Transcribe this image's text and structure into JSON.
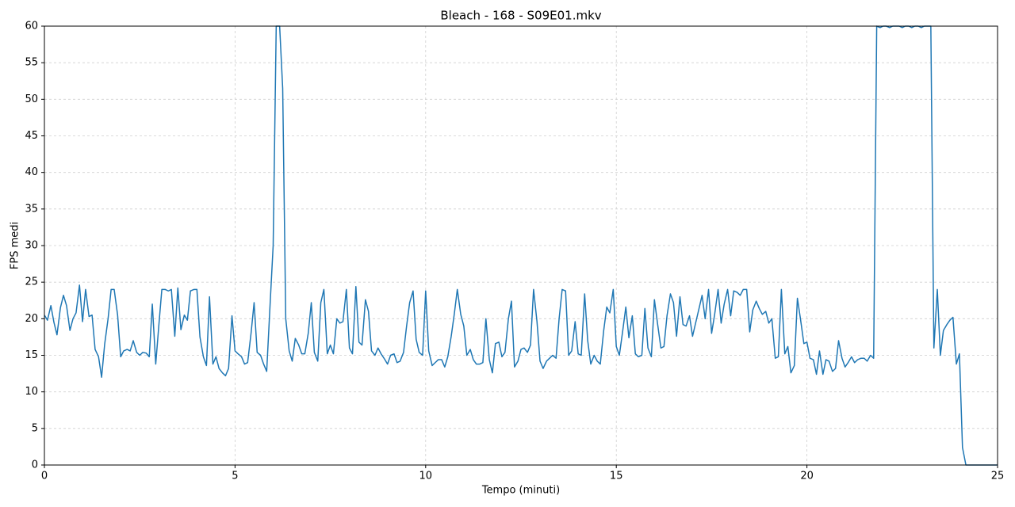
{
  "chart_data": {
    "type": "line",
    "title": "Bleach - 168 - S09E01.mkv",
    "x_label": "Tempo (minuti)",
    "y_label": "FPS medi",
    "xlim": [
      0,
      25
    ],
    "ylim": [
      0,
      60
    ],
    "xticks": [
      0,
      5,
      10,
      15,
      20,
      25
    ],
    "yticks": [
      0,
      5,
      10,
      15,
      20,
      25,
      30,
      35,
      40,
      45,
      50,
      55,
      60
    ],
    "grid": true,
    "x": [
      0,
      0.08,
      0.17,
      0.25,
      0.33,
      0.42,
      0.5,
      0.58,
      0.67,
      0.75,
      0.83,
      0.92,
      1,
      1.08,
      1.17,
      1.25,
      1.33,
      1.42,
      1.5,
      1.58,
      1.67,
      1.75,
      1.83,
      1.92,
      2,
      2.08,
      2.17,
      2.25,
      2.33,
      2.42,
      2.5,
      2.58,
      2.67,
      2.75,
      2.83,
      2.92,
      3,
      3.08,
      3.17,
      3.25,
      3.33,
      3.42,
      3.5,
      3.58,
      3.67,
      3.75,
      3.83,
      3.92,
      4,
      4.08,
      4.17,
      4.25,
      4.33,
      4.42,
      4.5,
      4.58,
      4.67,
      4.75,
      4.83,
      4.92,
      5,
      5.08,
      5.17,
      5.25,
      5.33,
      5.42,
      5.5,
      5.58,
      5.67,
      5.75,
      5.83,
      5.92,
      6,
      6.08,
      6.17,
      6.25,
      6.33,
      6.42,
      6.5,
      6.58,
      6.67,
      6.75,
      6.83,
      6.92,
      7,
      7.08,
      7.17,
      7.25,
      7.33,
      7.42,
      7.5,
      7.58,
      7.67,
      7.75,
      7.83,
      7.92,
      8,
      8.08,
      8.17,
      8.25,
      8.33,
      8.42,
      8.5,
      8.58,
      8.67,
      8.75,
      8.83,
      8.92,
      9,
      9.08,
      9.17,
      9.25,
      9.33,
      9.42,
      9.5,
      9.58,
      9.67,
      9.75,
      9.83,
      9.92,
      10,
      10.08,
      10.17,
      10.25,
      10.33,
      10.42,
      10.5,
      10.58,
      10.67,
      10.75,
      10.83,
      10.92,
      11,
      11.08,
      11.17,
      11.25,
      11.33,
      11.42,
      11.5,
      11.58,
      11.67,
      11.75,
      11.83,
      11.92,
      12,
      12.08,
      12.17,
      12.25,
      12.33,
      12.42,
      12.5,
      12.58,
      12.67,
      12.75,
      12.83,
      12.92,
      13,
      13.08,
      13.17,
      13.25,
      13.33,
      13.42,
      13.5,
      13.58,
      13.67,
      13.75,
      13.83,
      13.92,
      14,
      14.08,
      14.17,
      14.25,
      14.33,
      14.42,
      14.5,
      14.58,
      14.67,
      14.75,
      14.83,
      14.92,
      15,
      15.08,
      15.17,
      15.25,
      15.33,
      15.42,
      15.5,
      15.58,
      15.67,
      15.75,
      15.83,
      15.92,
      16,
      16.08,
      16.17,
      16.25,
      16.33,
      16.42,
      16.5,
      16.58,
      16.67,
      16.75,
      16.83,
      16.92,
      17,
      17.08,
      17.17,
      17.25,
      17.33,
      17.42,
      17.5,
      17.58,
      17.67,
      17.75,
      17.83,
      17.92,
      18,
      18.08,
      18.17,
      18.25,
      18.33,
      18.42,
      18.5,
      18.58,
      18.67,
      18.75,
      18.83,
      18.92,
      19,
      19.08,
      19.17,
      19.25,
      19.33,
      19.42,
      19.5,
      19.58,
      19.67,
      19.75,
      19.83,
      19.92,
      20,
      20.08,
      20.17,
      20.25,
      20.33,
      20.42,
      20.5,
      20.58,
      20.67,
      20.75,
      20.83,
      20.92,
      21,
      21.08,
      21.17,
      21.25,
      21.33,
      21.42,
      21.5,
      21.58,
      21.67,
      21.75,
      21.83,
      21.92,
      22,
      22.08,
      22.17,
      22.25,
      22.33,
      22.42,
      22.5,
      22.58,
      22.67,
      22.75,
      22.83,
      22.92,
      23,
      23.08,
      23.17,
      23.25,
      23.33,
      23.42,
      23.5,
      23.58,
      23.67,
      23.75,
      23.83,
      23.92,
      24,
      24.08,
      24.17,
      24.25,
      25
    ],
    "series": [
      {
        "color": "#1f77b4",
        "values": [
          20.5,
          19.8,
          21.8,
          19.5,
          17.8,
          21.5,
          23.2,
          21.8,
          18.4,
          20,
          20.8,
          24.6,
          19.6,
          24,
          20.3,
          20.5,
          15.8,
          14.8,
          12,
          16.5,
          20,
          24,
          24,
          20.5,
          14.8,
          15.6,
          15.8,
          15.6,
          17,
          15.4,
          15,
          15.4,
          15.3,
          14.8,
          22,
          13.8,
          19,
          24,
          24,
          23.8,
          24,
          17.6,
          24.2,
          18.5,
          20.5,
          19.8,
          23.8,
          24,
          24,
          17.5,
          14.8,
          13.6,
          23,
          13.8,
          14.8,
          13.2,
          12.6,
          12.2,
          13.2,
          20.4,
          15.6,
          15.2,
          14.8,
          13.8,
          14,
          18,
          22.2,
          15.4,
          15,
          13.8,
          12.8,
          22,
          30,
          60,
          60,
          51.5,
          20,
          15.6,
          14.2,
          17.3,
          16.4,
          15.2,
          15.2,
          18,
          22.2,
          15.4,
          14.2,
          22.2,
          24,
          15.2,
          16.4,
          15.2,
          20,
          19.4,
          19.6,
          24,
          16,
          15.2,
          24.4,
          16.8,
          16.4,
          22.6,
          21,
          15.6,
          15,
          16,
          15.2,
          14.5,
          13.8,
          15,
          15.2,
          14,
          14.2,
          15.4,
          19,
          22.2,
          23.8,
          17.2,
          15.4,
          15,
          23.8,
          15.6,
          13.6,
          14,
          14.4,
          14.4,
          13.4,
          14.8,
          17.6,
          20.6,
          24,
          20.6,
          19,
          15,
          15.8,
          14.4,
          13.8,
          13.8,
          14,
          20,
          14.4,
          12.6,
          16.6,
          16.8,
          14.8,
          15.4,
          20,
          22.4,
          13.4,
          14.2,
          15.8,
          16,
          15.4,
          16.4,
          24,
          19.6,
          14.2,
          13.2,
          14.2,
          14.6,
          15,
          14.6,
          20,
          24,
          23.8,
          15,
          15.6,
          19.6,
          15.2,
          15,
          23.4,
          17,
          13.8,
          15,
          14.2,
          13.8,
          18.4,
          21.6,
          20.8,
          24,
          16.2,
          15,
          18.4,
          21.6,
          17.4,
          20.4,
          15.2,
          14.8,
          15,
          21.4,
          16,
          14.8,
          22.6,
          19.4,
          16,
          16.2,
          20.4,
          23.4,
          22.2,
          17.6,
          23,
          19.2,
          19,
          20.4,
          17.6,
          19.4,
          21.4,
          23.2,
          20,
          24,
          18,
          20.6,
          24,
          19.4,
          22,
          24,
          20.4,
          23.8,
          23.6,
          23.2,
          24,
          24,
          18.2,
          21.2,
          22.4,
          21.4,
          20.6,
          21,
          19.4,
          20,
          14.6,
          14.8,
          24,
          15.2,
          16.2,
          12.6,
          13.6,
          22.8,
          20,
          16.6,
          16.8,
          14.6,
          14.4,
          12.4,
          15.6,
          12.4,
          14.4,
          14.2,
          12.8,
          13.2,
          17,
          14.6,
          13.4,
          14,
          14.8,
          14,
          14.4,
          14.6,
          14.6,
          14.2,
          15,
          14.6,
          60,
          59.8,
          60,
          60,
          59.8,
          60,
          60,
          60,
          59.8,
          60,
          60,
          59.8,
          60,
          60,
          59.8,
          60,
          60,
          60,
          16,
          24,
          15,
          18.4,
          19.2,
          19.8,
          20.2,
          13.8,
          15.2,
          2.4,
          0,
          0,
          0
        ]
      }
    ]
  }
}
